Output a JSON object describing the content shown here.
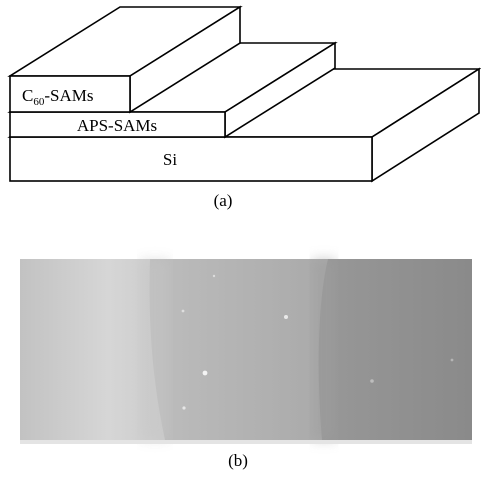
{
  "panel_a": {
    "layers": {
      "c60": {
        "prefix": "C",
        "subscript": "60",
        "suffix": "-SAMs"
      },
      "aps": "APS-SAMs",
      "substrate": "Si"
    },
    "caption": "(a)"
  },
  "panel_b": {
    "caption": "(b)",
    "regions": [
      "light-gray",
      "medium-gray",
      "dark-gray"
    ]
  },
  "colors": {
    "stroke": "#000000",
    "region_light": "#cfcfcf",
    "region_medium": "#b1b1b1",
    "region_dark": "#8f8f8f"
  }
}
